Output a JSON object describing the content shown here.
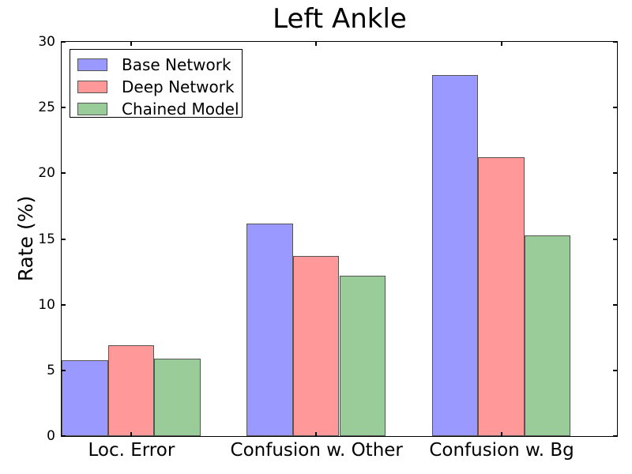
{
  "chart_data": {
    "type": "bar",
    "title": "Left Ankle",
    "xlabel": "",
    "ylabel": "Rate (%)",
    "categories": [
      "Loc. Error",
      "Confusion w. Other",
      "Confusion w. Bg"
    ],
    "series": [
      {
        "name": "Base Network",
        "color": "#9999ff",
        "values": [
          5.8,
          16.2,
          27.5
        ]
      },
      {
        "name": "Deep Network",
        "color": "#ff9999",
        "values": [
          6.9,
          13.7,
          21.2
        ]
      },
      {
        "name": "Chained Model",
        "color": "#99cc99",
        "values": [
          5.9,
          12.2,
          15.3
        ]
      }
    ],
    "ylim": [
      0,
      30
    ],
    "yticks": [
      0,
      5,
      10,
      15,
      20,
      25,
      30
    ],
    "bar_width_fraction": 0.25,
    "grid": false,
    "legend_position": "upper left",
    "bar_edge_color": "#555555",
    "axis_color": "#000000"
  }
}
